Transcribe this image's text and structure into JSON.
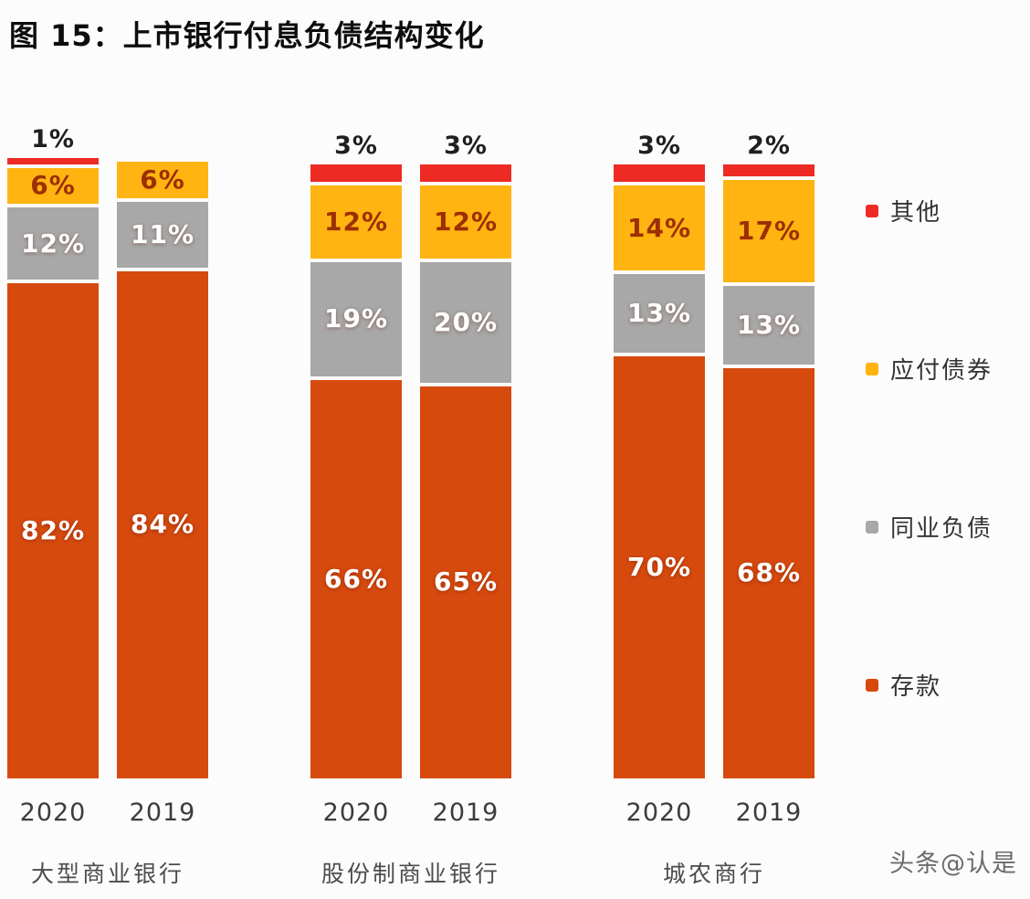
{
  "title": "图 15：上市银行付息负债结构变化",
  "watermark": "头条@认是",
  "legend": {
    "items": [
      {
        "label": "其他",
        "color": "#ee2a24"
      },
      {
        "label": "应付债券",
        "color": "#ffb412"
      },
      {
        "label": "同业负债",
        "color": "#a8a8a8"
      },
      {
        "label": "存款",
        "color": "#d64a0e"
      }
    ]
  },
  "chart_data": {
    "type": "bar",
    "stacked": true,
    "unit": "%",
    "value_axis_max": 100,
    "grid": false,
    "legend_position": "right",
    "series_order_bottom_to_top": [
      "存款",
      "同业负债",
      "应付债券",
      "其他"
    ],
    "series_colors": {
      "存款": "#d64a0e",
      "同业负债": "#a8a8a8",
      "应付债券": "#ffb412",
      "其他": "#ee2a24"
    },
    "groups": [
      {
        "label": "大型商业银行",
        "bars": [
          {
            "year": "2020",
            "above_bar_label": "1%",
            "values": {
              "存款": 82,
              "同业负债": 12,
              "应付债券": 6,
              "其他": 1
            }
          },
          {
            "year": "2019",
            "above_bar_label": "",
            "values": {
              "存款": 84,
              "同业负债": 11,
              "应付债券": 6,
              "其他": 0
            }
          }
        ]
      },
      {
        "label": "股份制商业银行",
        "bars": [
          {
            "year": "2020",
            "above_bar_label": "3%",
            "values": {
              "存款": 66,
              "同业负债": 19,
              "应付债券": 12,
              "其他": 3
            }
          },
          {
            "year": "2019",
            "above_bar_label": "3%",
            "values": {
              "存款": 65,
              "同业负债": 20,
              "应付债券": 12,
              "其他": 3
            }
          }
        ]
      },
      {
        "label": "城农商行",
        "bars": [
          {
            "year": "2020",
            "above_bar_label": "3%",
            "values": {
              "存款": 70,
              "同业负债": 13,
              "应付债券": 14,
              "其他": 3
            }
          },
          {
            "year": "2019",
            "above_bar_label": "2%",
            "values": {
              "存款": 68,
              "同业负债": 13,
              "应付债券": 17,
              "其他": 2
            }
          }
        ]
      }
    ]
  }
}
